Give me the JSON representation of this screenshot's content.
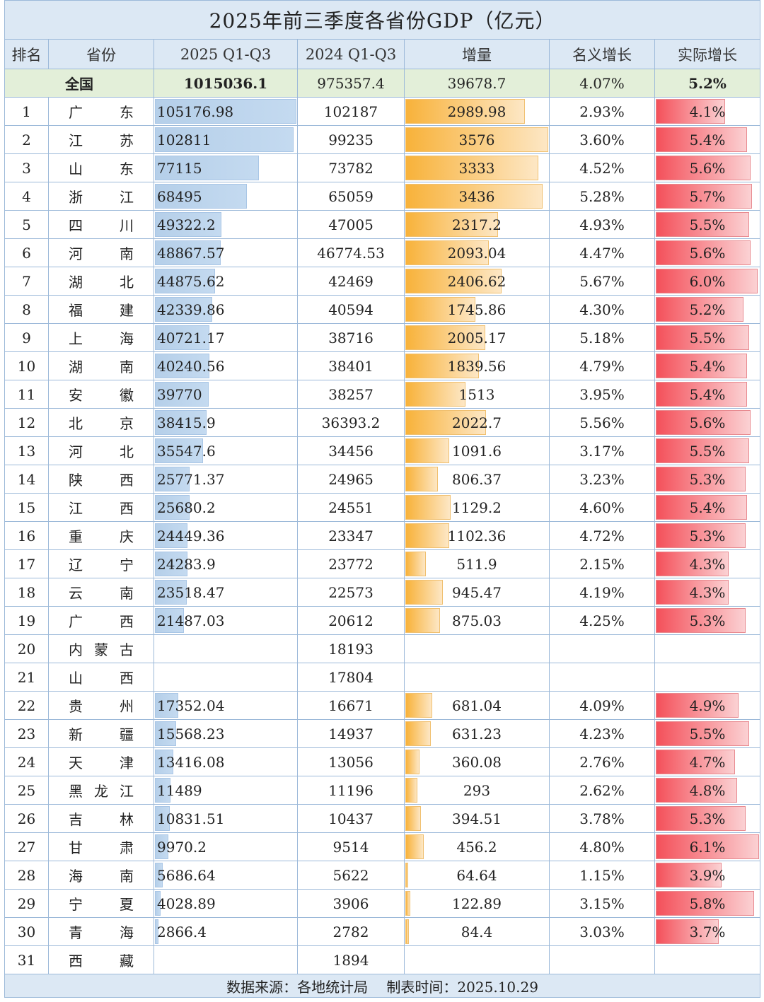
{
  "title": "2025年前三季度各省份GDP（亿元）",
  "headers": [
    "排名",
    "省份",
    "2025 Q1-Q3",
    "2024 Q1-Q3",
    "增量",
    "名义增长",
    "实际增长"
  ],
  "national": {
    "name": "全国",
    "gdp2025": "1015036.1",
    "gdp2024": "975357.4",
    "increase": "39678.7",
    "nominal": "4.07%",
    "real": "5.2%"
  },
  "footer": "数据来源：各地统计局　 制表时间：2025.10.29",
  "colors": {
    "header_bg": "#dce8f4",
    "national_bg": "#e3efd9",
    "bar_2025": "#b5cfe9",
    "bar_increase": "#f8b23a",
    "bar_real": "#f4505a"
  },
  "chart_data": {
    "type": "table",
    "columns": [
      "排名",
      "省份",
      "2025 Q1-Q3",
      "2024 Q1-Q3",
      "增量",
      "名义增长",
      "实际增长"
    ],
    "rows": [
      [
        "1",
        "广东",
        "105176.98",
        "102187",
        "2989.98",
        "2.93%",
        "4.1%"
      ],
      [
        "2",
        "江苏",
        "102811",
        "99235",
        "3576",
        "3.60%",
        "5.4%"
      ],
      [
        "3",
        "山东",
        "77115",
        "73782",
        "3333",
        "4.52%",
        "5.6%"
      ],
      [
        "4",
        "浙江",
        "68495",
        "65059",
        "3436",
        "5.28%",
        "5.7%"
      ],
      [
        "5",
        "四川",
        "49322.2",
        "47005",
        "2317.2",
        "4.93%",
        "5.5%"
      ],
      [
        "6",
        "河南",
        "48867.57",
        "46774.53",
        "2093.04",
        "4.47%",
        "5.6%"
      ],
      [
        "7",
        "湖北",
        "44875.62",
        "42469",
        "2406.62",
        "5.67%",
        "6.0%"
      ],
      [
        "8",
        "福建",
        "42339.86",
        "40594",
        "1745.86",
        "4.30%",
        "5.2%"
      ],
      [
        "9",
        "上海",
        "40721.17",
        "38716",
        "2005.17",
        "5.18%",
        "5.5%"
      ],
      [
        "10",
        "湖南",
        "40240.56",
        "38401",
        "1839.56",
        "4.79%",
        "5.4%"
      ],
      [
        "11",
        "安徽",
        "39770",
        "38257",
        "1513",
        "3.95%",
        "5.4%"
      ],
      [
        "12",
        "北京",
        "38415.9",
        "36393.2",
        "2022.7",
        "5.56%",
        "5.6%"
      ],
      [
        "13",
        "河北",
        "35547.6",
        "34456",
        "1091.6",
        "3.17%",
        "5.5%"
      ],
      [
        "14",
        "陕西",
        "25771.37",
        "24965",
        "806.37",
        "3.23%",
        "5.3%"
      ],
      [
        "15",
        "江西",
        "25680.2",
        "24551",
        "1129.2",
        "4.60%",
        "5.4%"
      ],
      [
        "16",
        "重庆",
        "24449.36",
        "23347",
        "1102.36",
        "4.72%",
        "5.3%"
      ],
      [
        "17",
        "辽宁",
        "24283.9",
        "23772",
        "511.9",
        "2.15%",
        "4.3%"
      ],
      [
        "18",
        "云南",
        "23518.47",
        "22573",
        "945.47",
        "4.19%",
        "4.3%"
      ],
      [
        "19",
        "广西",
        "21487.03",
        "20612",
        "875.03",
        "4.25%",
        "5.3%"
      ],
      [
        "20",
        "内蒙古",
        "",
        "18193",
        "",
        "",
        ""
      ],
      [
        "21",
        "山西",
        "",
        "17804",
        "",
        "",
        ""
      ],
      [
        "22",
        "贵州",
        "17352.04",
        "16671",
        "681.04",
        "4.09%",
        "4.9%"
      ],
      [
        "23",
        "新疆",
        "15568.23",
        "14937",
        "631.23",
        "4.23%",
        "5.5%"
      ],
      [
        "24",
        "天津",
        "13416.08",
        "13056",
        "360.08",
        "2.76%",
        "4.7%"
      ],
      [
        "25",
        "黑龙江",
        "11489",
        "11196",
        "293",
        "2.62%",
        "4.8%"
      ],
      [
        "26",
        "吉林",
        "10831.51",
        "10437",
        "394.51",
        "3.78%",
        "5.3%"
      ],
      [
        "27",
        "甘肃",
        "9970.2",
        "9514",
        "456.2",
        "4.80%",
        "6.1%"
      ],
      [
        "28",
        "海南",
        "5686.64",
        "5622",
        "64.64",
        "1.15%",
        "3.9%"
      ],
      [
        "29",
        "宁夏",
        "4028.89",
        "3906",
        "122.89",
        "3.15%",
        "5.8%"
      ],
      [
        "30",
        "青海",
        "2866.4",
        "2782",
        "84.4",
        "3.03%",
        "3.7%"
      ],
      [
        "31",
        "西藏",
        "",
        "1894",
        "",
        "",
        ""
      ]
    ]
  }
}
